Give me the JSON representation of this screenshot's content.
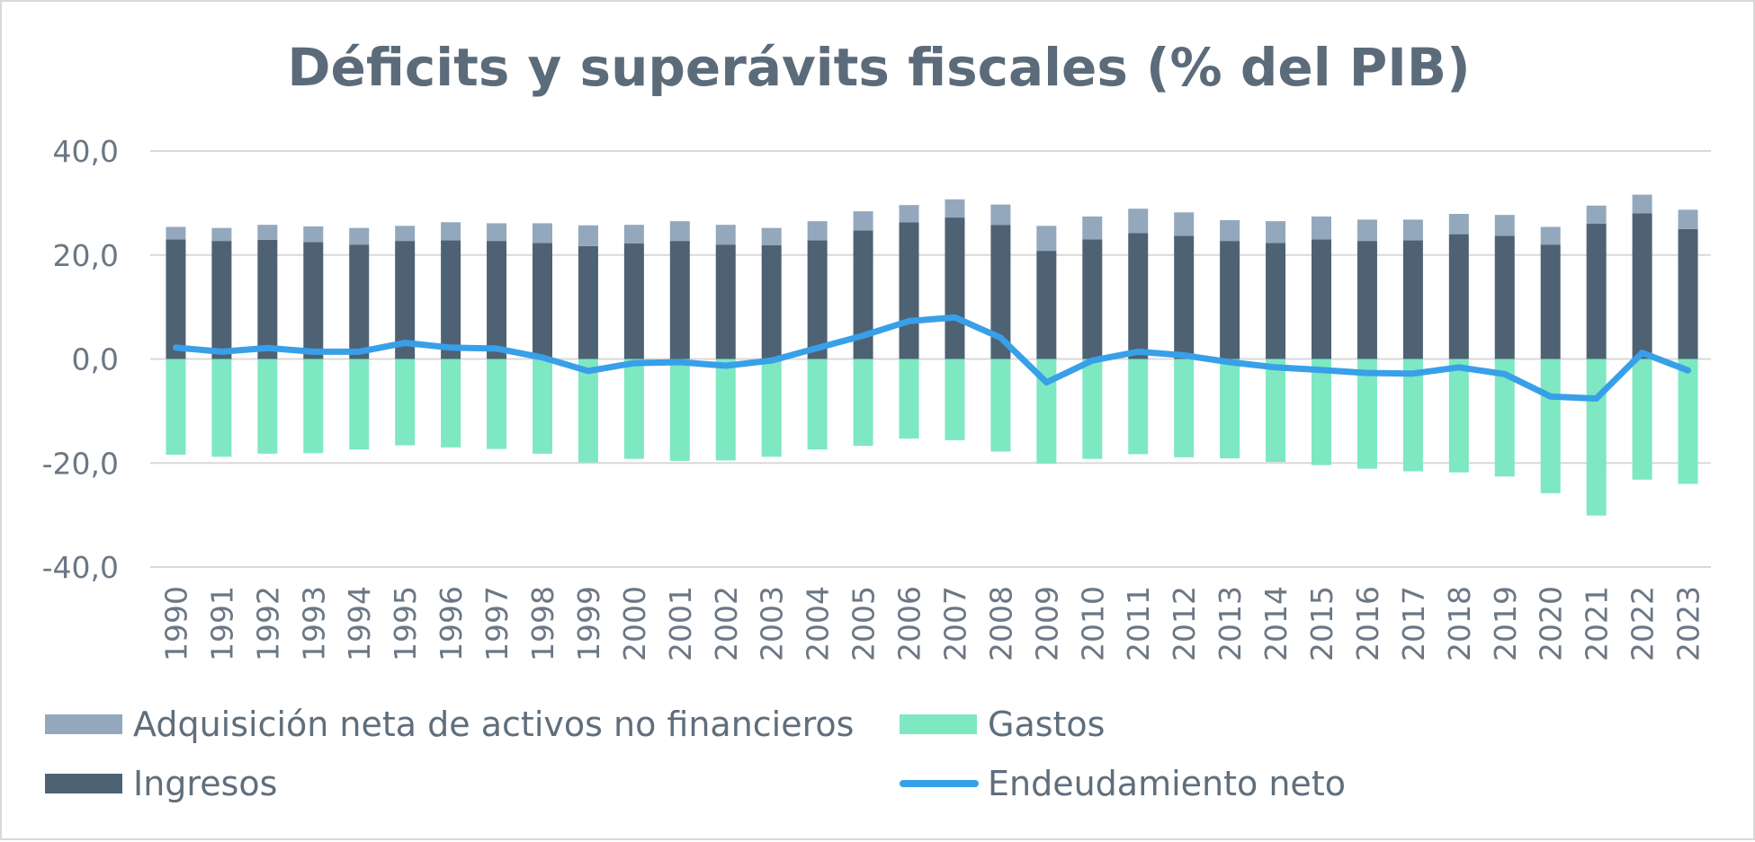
{
  "chart_data": {
    "type": "bar",
    "title": "Déficits y superávits fiscales (% del PIB)",
    "categories": [
      "1990",
      "1991",
      "1992",
      "1993",
      "1994",
      "1995",
      "1996",
      "1997",
      "1998",
      "1999",
      "2000",
      "2001",
      "2002",
      "2003",
      "2004",
      "2005",
      "2006",
      "2007",
      "2008",
      "2009",
      "2010",
      "2011",
      "2012",
      "2013",
      "2014",
      "2015",
      "2016",
      "2017",
      "2018",
      "2019",
      "2020",
      "2021",
      "2022",
      "2023"
    ],
    "ylim": [
      -40,
      40
    ],
    "y_ticks": [
      "40,0",
      "20,0",
      "0,0",
      "-20,0",
      "-40,0"
    ],
    "y_tick_values": [
      40,
      20,
      0,
      -20,
      -40
    ],
    "grid": true,
    "legend_position": "bottom",
    "series": [
      {
        "name": "Ingresos",
        "type": "bar",
        "stack": "positive",
        "color": "#4e6274",
        "values": [
          23.0,
          22.7,
          22.9,
          22.5,
          22.0,
          22.7,
          22.8,
          22.7,
          22.3,
          21.7,
          22.2,
          22.7,
          22.0,
          21.9,
          22.8,
          24.7,
          26.3,
          27.2,
          25.8,
          20.8,
          23.0,
          24.2,
          23.7,
          22.7,
          22.3,
          23.0,
          22.7,
          22.8,
          24.0,
          23.7,
          22.0,
          26.0,
          28.0,
          25.0
        ]
      },
      {
        "name": "Adquisición neta de activos no financieros",
        "type": "bar",
        "stack": "positive",
        "color": "#93a8bd",
        "values": [
          2.4,
          2.5,
          2.9,
          3.0,
          3.2,
          2.9,
          3.5,
          3.4,
          3.8,
          4.0,
          3.6,
          3.8,
          3.8,
          3.3,
          3.7,
          3.7,
          3.3,
          3.5,
          3.9,
          4.8,
          4.4,
          4.7,
          4.5,
          4.0,
          4.2,
          4.4,
          4.1,
          4.0,
          3.9,
          4.0,
          3.4,
          3.5,
          3.6,
          3.7
        ]
      },
      {
        "name": "Gastos",
        "type": "bar",
        "stack": "negative",
        "color": "#7de8c2",
        "values": [
          -18.4,
          -18.8,
          -18.2,
          -18.1,
          -17.4,
          -16.6,
          -17.0,
          -17.3,
          -18.2,
          -19.9,
          -19.2,
          -19.6,
          -19.5,
          -18.8,
          -17.4,
          -16.7,
          -15.3,
          -15.6,
          -17.8,
          -20.1,
          -19.2,
          -18.3,
          -18.9,
          -19.1,
          -19.8,
          -20.4,
          -21.1,
          -21.6,
          -21.8,
          -22.6,
          -25.8,
          -30.1,
          -23.2,
          -24.0
        ]
      },
      {
        "name": "Endeudamiento neto",
        "type": "line",
        "color": "#38a0e8",
        "values": [
          2.2,
          1.4,
          2.1,
          1.4,
          1.4,
          3.1,
          2.2,
          2.0,
          0.3,
          -2.3,
          -0.8,
          -0.6,
          -1.3,
          -0.3,
          2.1,
          4.5,
          7.3,
          8.0,
          4.1,
          -4.5,
          -0.3,
          1.4,
          0.7,
          -0.6,
          -1.6,
          -2.1,
          -2.7,
          -2.8,
          -1.6,
          -2.9,
          -7.2,
          -7.6,
          1.2,
          -2.2
        ]
      }
    ],
    "legend": [
      {
        "label": "Adquisición neta de activos no financieros",
        "kind": "bar",
        "color": "#93a8bd"
      },
      {
        "label": "Gastos",
        "kind": "bar",
        "color": "#7de8c2"
      },
      {
        "label": "Ingresos",
        "kind": "bar",
        "color": "#4e6274"
      },
      {
        "label": "Endeudamiento neto",
        "kind": "line",
        "color": "#38a0e8"
      }
    ],
    "colors": {
      "grid": "#d9d9d9",
      "title": "#5b6b7a",
      "ticks": "#6b7785"
    }
  }
}
